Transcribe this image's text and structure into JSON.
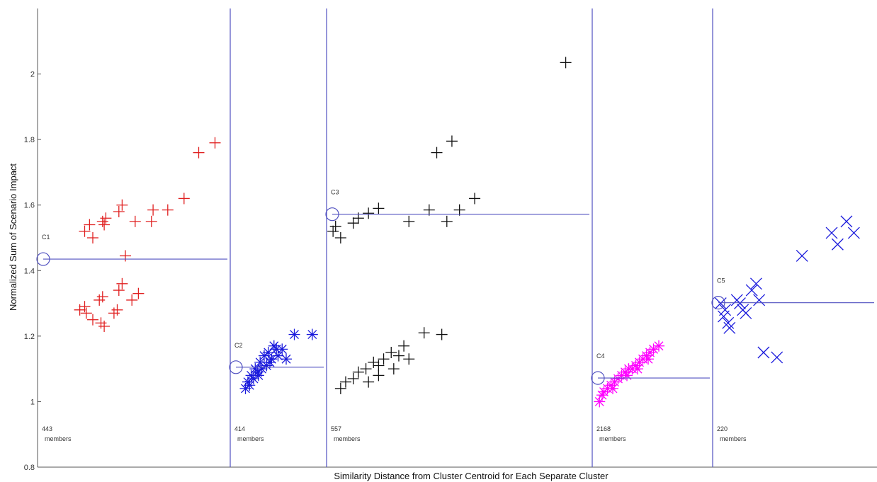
{
  "chart_data": {
    "type": "scatter",
    "title": "",
    "xlabel": "Similarity Distance from Cluster Centroid for Each Separate Cluster",
    "ylabel": "Normalized Sum of Scenario Impact",
    "ylim": [
      0.8,
      2.2
    ],
    "yticks": [
      0.8,
      1,
      1.2,
      1.4,
      1.6,
      1.8,
      2
    ],
    "ytick_labels": [
      "0.8",
      "1",
      "1.2",
      "1.4",
      "1.6",
      "1.8",
      "2"
    ],
    "grid": false,
    "legend": "none",
    "clusters": [
      {
        "name": "C1",
        "members_count": "443",
        "members_label": "members",
        "marker": "plus",
        "color": "#e02020",
        "centroid_y": 1.435,
        "points": [
          [
            0.15,
            1.52
          ],
          [
            0.18,
            1.54
          ],
          [
            0.2,
            1.5
          ],
          [
            0.26,
            1.55
          ],
          [
            0.28,
            1.56
          ],
          [
            0.27,
            1.54
          ],
          [
            0.36,
            1.58
          ],
          [
            0.38,
            1.6
          ],
          [
            0.4,
            1.445
          ],
          [
            0.46,
            1.55
          ],
          [
            0.56,
            1.55
          ],
          [
            0.57,
            1.585
          ],
          [
            0.66,
            1.585
          ],
          [
            0.76,
            1.62
          ],
          [
            0.85,
            1.76
          ],
          [
            0.95,
            1.79
          ],
          [
            0.12,
            1.28
          ],
          [
            0.16,
            1.27
          ],
          [
            0.15,
            1.29
          ],
          [
            0.2,
            1.25
          ],
          [
            0.24,
            1.31
          ],
          [
            0.25,
            1.24
          ],
          [
            0.26,
            1.32
          ],
          [
            0.27,
            1.23
          ],
          [
            0.33,
            1.27
          ],
          [
            0.35,
            1.28
          ],
          [
            0.36,
            1.34
          ],
          [
            0.38,
            1.36
          ],
          [
            0.44,
            1.31
          ],
          [
            0.48,
            1.33
          ]
        ]
      },
      {
        "name": "C2",
        "members_count": "414",
        "members_label": "members",
        "marker": "asterisk",
        "color": "#1a1adc",
        "centroid_y": 1.105,
        "points": [
          [
            0.1,
            1.04
          ],
          [
            0.13,
            1.06
          ],
          [
            0.15,
            1.05
          ],
          [
            0.17,
            1.08
          ],
          [
            0.2,
            1.07
          ],
          [
            0.22,
            1.1
          ],
          [
            0.25,
            1.09
          ],
          [
            0.28,
            1.12
          ],
          [
            0.3,
            1.1
          ],
          [
            0.33,
            1.14
          ],
          [
            0.36,
            1.11
          ],
          [
            0.38,
            1.15
          ],
          [
            0.42,
            1.13
          ],
          [
            0.45,
            1.17
          ],
          [
            0.48,
            1.16
          ],
          [
            0.5,
            1.14
          ],
          [
            0.55,
            1.16
          ],
          [
            0.6,
            1.13
          ],
          [
            0.7,
            1.205
          ],
          [
            0.92,
            1.205
          ],
          [
            0.26,
            1.08
          ],
          [
            0.4,
            1.12
          ]
        ]
      },
      {
        "name": "C3",
        "members_count": "557",
        "members_label": "members",
        "marker": "plus",
        "color": "#111111",
        "centroid_y": 1.572,
        "points": [
          [
            0.02,
            1.52
          ],
          [
            0.03,
            1.535
          ],
          [
            0.05,
            1.5
          ],
          [
            0.1,
            1.545
          ],
          [
            0.12,
            1.56
          ],
          [
            0.16,
            1.575
          ],
          [
            0.2,
            1.59
          ],
          [
            0.32,
            1.55
          ],
          [
            0.4,
            1.585
          ],
          [
            0.43,
            1.76
          ],
          [
            0.47,
            1.55
          ],
          [
            0.49,
            1.795
          ],
          [
            0.52,
            1.585
          ],
          [
            0.58,
            1.62
          ],
          [
            0.94,
            2.035
          ],
          [
            0.05,
            1.04
          ],
          [
            0.07,
            1.06
          ],
          [
            0.1,
            1.07
          ],
          [
            0.12,
            1.09
          ],
          [
            0.15,
            1.1
          ],
          [
            0.18,
            1.12
          ],
          [
            0.2,
            1.11
          ],
          [
            0.22,
            1.13
          ],
          [
            0.25,
            1.15
          ],
          [
            0.28,
            1.14
          ],
          [
            0.3,
            1.17
          ],
          [
            0.32,
            1.13
          ],
          [
            0.26,
            1.1
          ],
          [
            0.2,
            1.08
          ],
          [
            0.16,
            1.06
          ],
          [
            0.38,
            1.21
          ],
          [
            0.45,
            1.205
          ]
        ]
      },
      {
        "name": "C4",
        "members_count": "2168",
        "members_label": "members",
        "marker": "asterisk",
        "color": "#ff00ff",
        "centroid_y": 1.072,
        "points": [
          [
            0.05,
            1.0
          ],
          [
            0.08,
            1.02
          ],
          [
            0.1,
            1.03
          ],
          [
            0.14,
            1.04
          ],
          [
            0.18,
            1.05
          ],
          [
            0.22,
            1.06
          ],
          [
            0.26,
            1.07
          ],
          [
            0.3,
            1.08
          ],
          [
            0.34,
            1.09
          ],
          [
            0.38,
            1.1
          ],
          [
            0.42,
            1.1
          ],
          [
            0.46,
            1.11
          ],
          [
            0.5,
            1.12
          ],
          [
            0.54,
            1.13
          ],
          [
            0.58,
            1.14
          ],
          [
            0.62,
            1.15
          ],
          [
            0.66,
            1.16
          ],
          [
            0.72,
            1.17
          ],
          [
            0.2,
            1.04
          ],
          [
            0.36,
            1.08
          ],
          [
            0.48,
            1.1
          ],
          [
            0.6,
            1.13
          ]
        ]
      },
      {
        "name": "C5",
        "members_count": "220",
        "members_label": "members",
        "marker": "cross",
        "color": "#1a1adc",
        "centroid_y": 1.302,
        "points": [
          [
            0.03,
            1.3
          ],
          [
            0.05,
            1.26
          ],
          [
            0.06,
            1.28
          ],
          [
            0.08,
            1.24
          ],
          [
            0.09,
            1.225
          ],
          [
            0.14,
            1.31
          ],
          [
            0.16,
            1.3
          ],
          [
            0.18,
            1.28
          ],
          [
            0.2,
            1.27
          ],
          [
            0.24,
            1.34
          ],
          [
            0.27,
            1.36
          ],
          [
            0.29,
            1.31
          ],
          [
            0.32,
            1.15
          ],
          [
            0.41,
            1.135
          ],
          [
            0.58,
            1.445
          ],
          [
            0.78,
            1.515
          ],
          [
            0.82,
            1.48
          ],
          [
            0.88,
            1.55
          ],
          [
            0.93,
            1.515
          ]
        ]
      }
    ]
  },
  "style": {
    "axis_color": "#555555",
    "divider_color": "#5050c0",
    "centroid_color": "#5050c0",
    "background": "#ffffff"
  }
}
